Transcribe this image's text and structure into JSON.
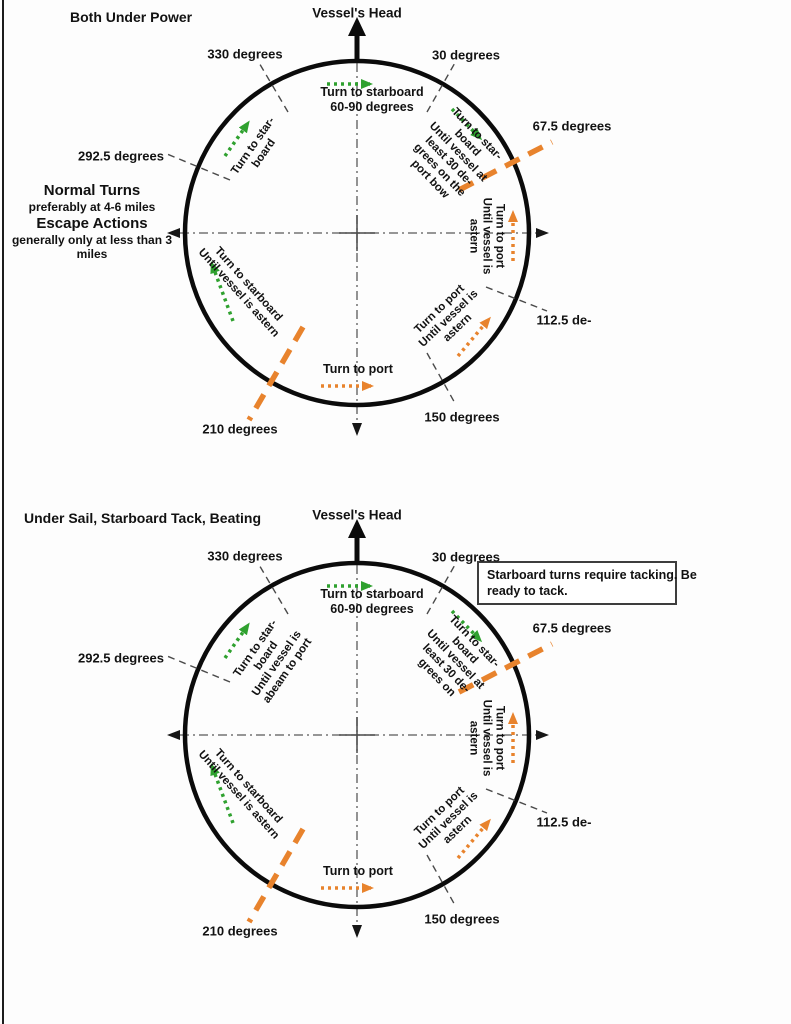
{
  "colors": {
    "green": "#2fa12f",
    "orange": "#e8832d"
  },
  "diagram1": {
    "title": "Both Under Power",
    "vessel_head_label": "Vessel's Head",
    "degree_labels": {
      "d330": "330 degrees",
      "d30": "30 degrees",
      "d67_5": "67.5 degrees",
      "d292_5": "292.5 degrees",
      "d112_5": "112.5 de-",
      "d150": "150 degrees",
      "d210": "210 degrees"
    },
    "turn_notes": {
      "top": "Turn to starboard\n60-90 degrees",
      "upper_left": "Turn to star-\nboard",
      "upper_right": "Turn to star-\nboard\nUntil vessel at\nleast 30 de-\ngrees on the\nport bow",
      "right": "Turn to port\nUntil vessel is\nastern",
      "lower_right": "Turn to port\nUntil vessel is\nastern",
      "lower_left": "Turn to starboard\nUntil vessel is astern",
      "bottom": "Turn to port"
    },
    "range_note": {
      "heading1": "Normal Turns",
      "sub1": "preferably at 4-6 miles",
      "heading2": "Escape Actions",
      "sub2": "generally only at less than 3\nmiles"
    }
  },
  "diagram2": {
    "title": "Under Sail, Starboard Tack, Beating",
    "vessel_head_label": "Vessel's Head",
    "tack_note": "Starboard turns require tacking. Be\nready to tack.",
    "degree_labels": {
      "d330": "330 degrees",
      "d30": "30 degrees",
      "d67_5": "67.5 degrees",
      "d292_5": "292.5 degrees",
      "d112_5": "112.5 de-",
      "d150": "150 degrees",
      "d210": "210 degrees"
    },
    "turn_notes": {
      "top": "Turn to starboard\n60-90 degrees",
      "upper_left": "Turn to star-\nboard\nUntil vessel is\nabeam to port",
      "upper_right": "Turn to star-\nboard\nUntil vessel at\nleast 30 de-\ngrees on",
      "right": "Turn to port\nUntil vessel is\nastern",
      "lower_right": "Turn to port\nUntil vessel is\nastern",
      "lower_left": "Turn to starboard\nUntil vessel is astern",
      "bottom": "Turn to port"
    }
  }
}
